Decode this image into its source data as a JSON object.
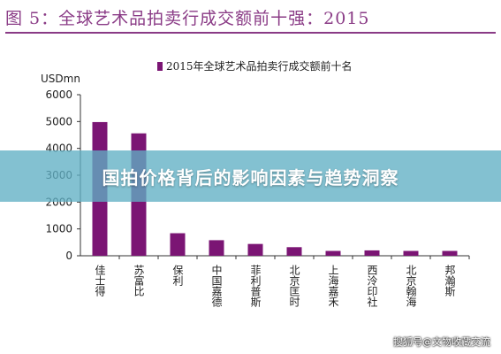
{
  "header": {
    "title": "图 5：全球艺术品拍卖行成交额前十强：2015"
  },
  "overlay": {
    "banner_text": "国拍价格背后的影响因素与趋势洞察",
    "watermark": "搜狐号@文物收藏交流"
  },
  "colors": {
    "accent": "#8a3b86",
    "bar": "#7b1574",
    "banner": "#60b0c4"
  },
  "chart_data": {
    "type": "bar",
    "title": "",
    "ylabel": "USDmn",
    "ylim": [
      0,
      6000
    ],
    "yticks": [
      0,
      1000,
      2000,
      3000,
      4000,
      5000,
      6000
    ],
    "legend": "top",
    "categories": [
      "佳士得",
      "苏富比",
      "保利",
      "中国嘉德",
      "菲利普斯",
      "北京匡时",
      "上海嘉禾",
      "西泠印社",
      "北京翰海",
      "邦瀚斯"
    ],
    "series": [
      {
        "name": "2015年全球艺术品拍卖行成交额前十名",
        "values": [
          4980,
          4560,
          840,
          580,
          440,
          320,
          180,
          200,
          180,
          180
        ]
      }
    ]
  }
}
